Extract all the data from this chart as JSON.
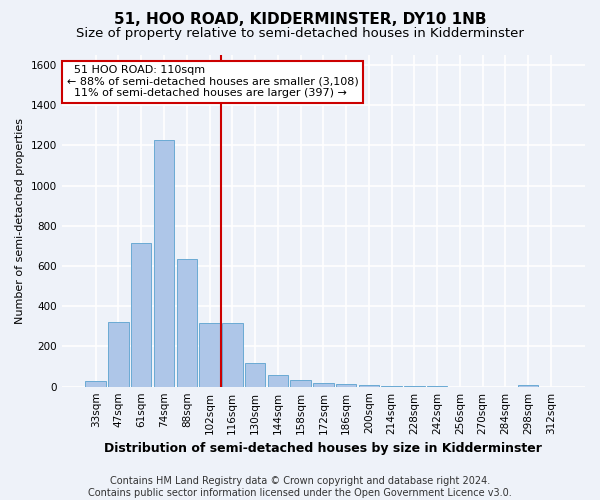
{
  "title": "51, HOO ROAD, KIDDERMINSTER, DY10 1NB",
  "subtitle": "Size of property relative to semi-detached houses in Kidderminster",
  "xlabel": "Distribution of semi-detached houses by size in Kidderminster",
  "ylabel": "Number of semi-detached properties",
  "categories": [
    "33sqm",
    "47sqm",
    "61sqm",
    "74sqm",
    "88sqm",
    "102sqm",
    "116sqm",
    "130sqm",
    "144sqm",
    "158sqm",
    "172sqm",
    "186sqm",
    "200sqm",
    "214sqm",
    "228sqm",
    "242sqm",
    "256sqm",
    "270sqm",
    "284sqm",
    "298sqm",
    "312sqm"
  ],
  "values": [
    30,
    320,
    715,
    1225,
    635,
    315,
    315,
    120,
    60,
    35,
    20,
    15,
    10,
    5,
    5,
    5,
    0,
    0,
    0,
    10,
    0
  ],
  "bar_color": "#aec6e8",
  "bar_edge_color": "#6aaad4",
  "vline_color": "#cc0000",
  "vline_x": 5.5,
  "annotation_text": "  51 HOO ROAD: 110sqm\n← 88% of semi-detached houses are smaller (3,108)\n  11% of semi-detached houses are larger (397) →",
  "annotation_box_color": "#ffffff",
  "annotation_box_edge": "#cc0000",
  "ylim": [
    0,
    1650
  ],
  "yticks": [
    0,
    200,
    400,
    600,
    800,
    1000,
    1200,
    1400,
    1600
  ],
  "footer_text": "Contains HM Land Registry data © Crown copyright and database right 2024.\nContains public sector information licensed under the Open Government Licence v3.0.",
  "bg_color": "#eef2f9",
  "grid_color": "#ffffff",
  "title_fontsize": 11,
  "subtitle_fontsize": 9.5,
  "tick_fontsize": 7.5,
  "ylabel_fontsize": 8,
  "xlabel_fontsize": 9,
  "footer_fontsize": 7
}
